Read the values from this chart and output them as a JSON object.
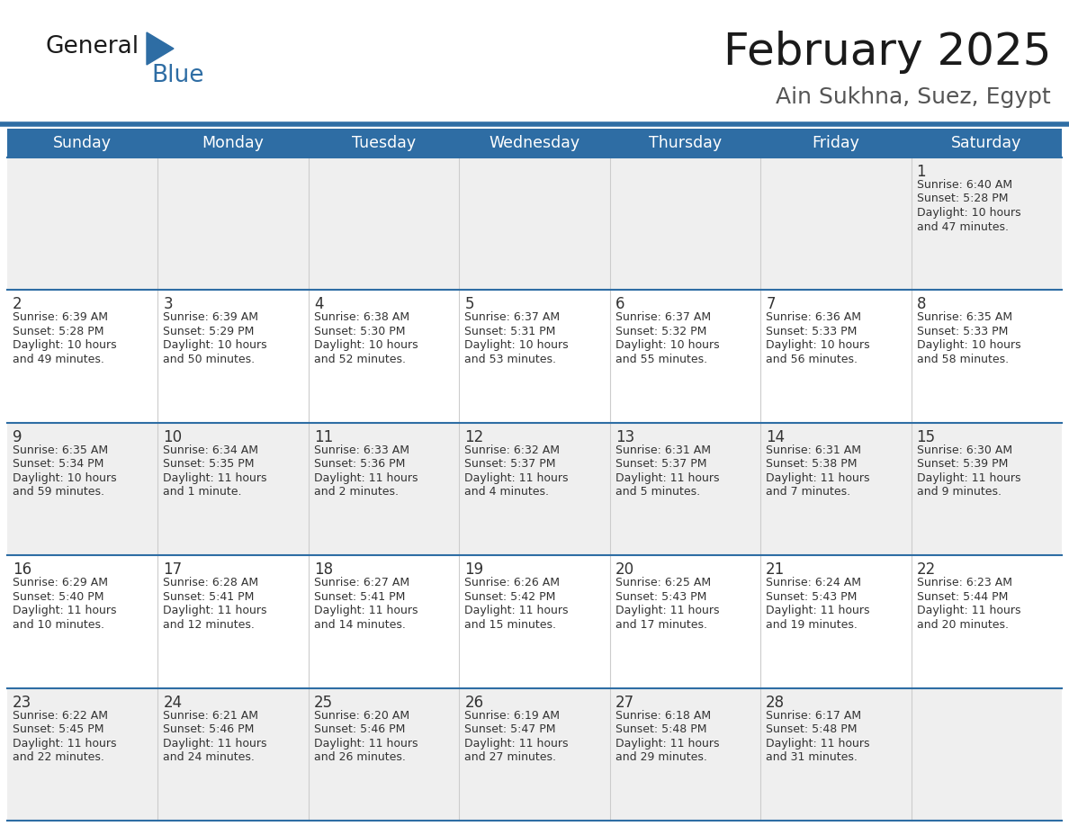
{
  "title": "February 2025",
  "subtitle": "Ain Sukhna, Suez, Egypt",
  "header_bg": "#2E6DA4",
  "header_text_color": "#FFFFFF",
  "row_bg_gray": "#EFEFEF",
  "row_bg_white": "#FFFFFF",
  "border_color": "#2E6DA4",
  "text_color": "#333333",
  "divider_color": "#CCCCCC",
  "days_of_week": [
    "Sunday",
    "Monday",
    "Tuesday",
    "Wednesday",
    "Thursday",
    "Friday",
    "Saturday"
  ],
  "weeks": [
    [
      {
        "day": "",
        "info": ""
      },
      {
        "day": "",
        "info": ""
      },
      {
        "day": "",
        "info": ""
      },
      {
        "day": "",
        "info": ""
      },
      {
        "day": "",
        "info": ""
      },
      {
        "day": "",
        "info": ""
      },
      {
        "day": "1",
        "info": "Sunrise: 6:40 AM\nSunset: 5:28 PM\nDaylight: 10 hours\nand 47 minutes."
      }
    ],
    [
      {
        "day": "2",
        "info": "Sunrise: 6:39 AM\nSunset: 5:28 PM\nDaylight: 10 hours\nand 49 minutes."
      },
      {
        "day": "3",
        "info": "Sunrise: 6:39 AM\nSunset: 5:29 PM\nDaylight: 10 hours\nand 50 minutes."
      },
      {
        "day": "4",
        "info": "Sunrise: 6:38 AM\nSunset: 5:30 PM\nDaylight: 10 hours\nand 52 minutes."
      },
      {
        "day": "5",
        "info": "Sunrise: 6:37 AM\nSunset: 5:31 PM\nDaylight: 10 hours\nand 53 minutes."
      },
      {
        "day": "6",
        "info": "Sunrise: 6:37 AM\nSunset: 5:32 PM\nDaylight: 10 hours\nand 55 minutes."
      },
      {
        "day": "7",
        "info": "Sunrise: 6:36 AM\nSunset: 5:33 PM\nDaylight: 10 hours\nand 56 minutes."
      },
      {
        "day": "8",
        "info": "Sunrise: 6:35 AM\nSunset: 5:33 PM\nDaylight: 10 hours\nand 58 minutes."
      }
    ],
    [
      {
        "day": "9",
        "info": "Sunrise: 6:35 AM\nSunset: 5:34 PM\nDaylight: 10 hours\nand 59 minutes."
      },
      {
        "day": "10",
        "info": "Sunrise: 6:34 AM\nSunset: 5:35 PM\nDaylight: 11 hours\nand 1 minute."
      },
      {
        "day": "11",
        "info": "Sunrise: 6:33 AM\nSunset: 5:36 PM\nDaylight: 11 hours\nand 2 minutes."
      },
      {
        "day": "12",
        "info": "Sunrise: 6:32 AM\nSunset: 5:37 PM\nDaylight: 11 hours\nand 4 minutes."
      },
      {
        "day": "13",
        "info": "Sunrise: 6:31 AM\nSunset: 5:37 PM\nDaylight: 11 hours\nand 5 minutes."
      },
      {
        "day": "14",
        "info": "Sunrise: 6:31 AM\nSunset: 5:38 PM\nDaylight: 11 hours\nand 7 minutes."
      },
      {
        "day": "15",
        "info": "Sunrise: 6:30 AM\nSunset: 5:39 PM\nDaylight: 11 hours\nand 9 minutes."
      }
    ],
    [
      {
        "day": "16",
        "info": "Sunrise: 6:29 AM\nSunset: 5:40 PM\nDaylight: 11 hours\nand 10 minutes."
      },
      {
        "day": "17",
        "info": "Sunrise: 6:28 AM\nSunset: 5:41 PM\nDaylight: 11 hours\nand 12 minutes."
      },
      {
        "day": "18",
        "info": "Sunrise: 6:27 AM\nSunset: 5:41 PM\nDaylight: 11 hours\nand 14 minutes."
      },
      {
        "day": "19",
        "info": "Sunrise: 6:26 AM\nSunset: 5:42 PM\nDaylight: 11 hours\nand 15 minutes."
      },
      {
        "day": "20",
        "info": "Sunrise: 6:25 AM\nSunset: 5:43 PM\nDaylight: 11 hours\nand 17 minutes."
      },
      {
        "day": "21",
        "info": "Sunrise: 6:24 AM\nSunset: 5:43 PM\nDaylight: 11 hours\nand 19 minutes."
      },
      {
        "day": "22",
        "info": "Sunrise: 6:23 AM\nSunset: 5:44 PM\nDaylight: 11 hours\nand 20 minutes."
      }
    ],
    [
      {
        "day": "23",
        "info": "Sunrise: 6:22 AM\nSunset: 5:45 PM\nDaylight: 11 hours\nand 22 minutes."
      },
      {
        "day": "24",
        "info": "Sunrise: 6:21 AM\nSunset: 5:46 PM\nDaylight: 11 hours\nand 24 minutes."
      },
      {
        "day": "25",
        "info": "Sunrise: 6:20 AM\nSunset: 5:46 PM\nDaylight: 11 hours\nand 26 minutes."
      },
      {
        "day": "26",
        "info": "Sunrise: 6:19 AM\nSunset: 5:47 PM\nDaylight: 11 hours\nand 27 minutes."
      },
      {
        "day": "27",
        "info": "Sunrise: 6:18 AM\nSunset: 5:48 PM\nDaylight: 11 hours\nand 29 minutes."
      },
      {
        "day": "28",
        "info": "Sunrise: 6:17 AM\nSunset: 5:48 PM\nDaylight: 11 hours\nand 31 minutes."
      },
      {
        "day": "",
        "info": ""
      }
    ]
  ],
  "logo_general_color": "#1a1a1a",
  "logo_blue_color": "#2E6DA4",
  "figsize": [
    11.88,
    9.18
  ],
  "dpi": 100
}
